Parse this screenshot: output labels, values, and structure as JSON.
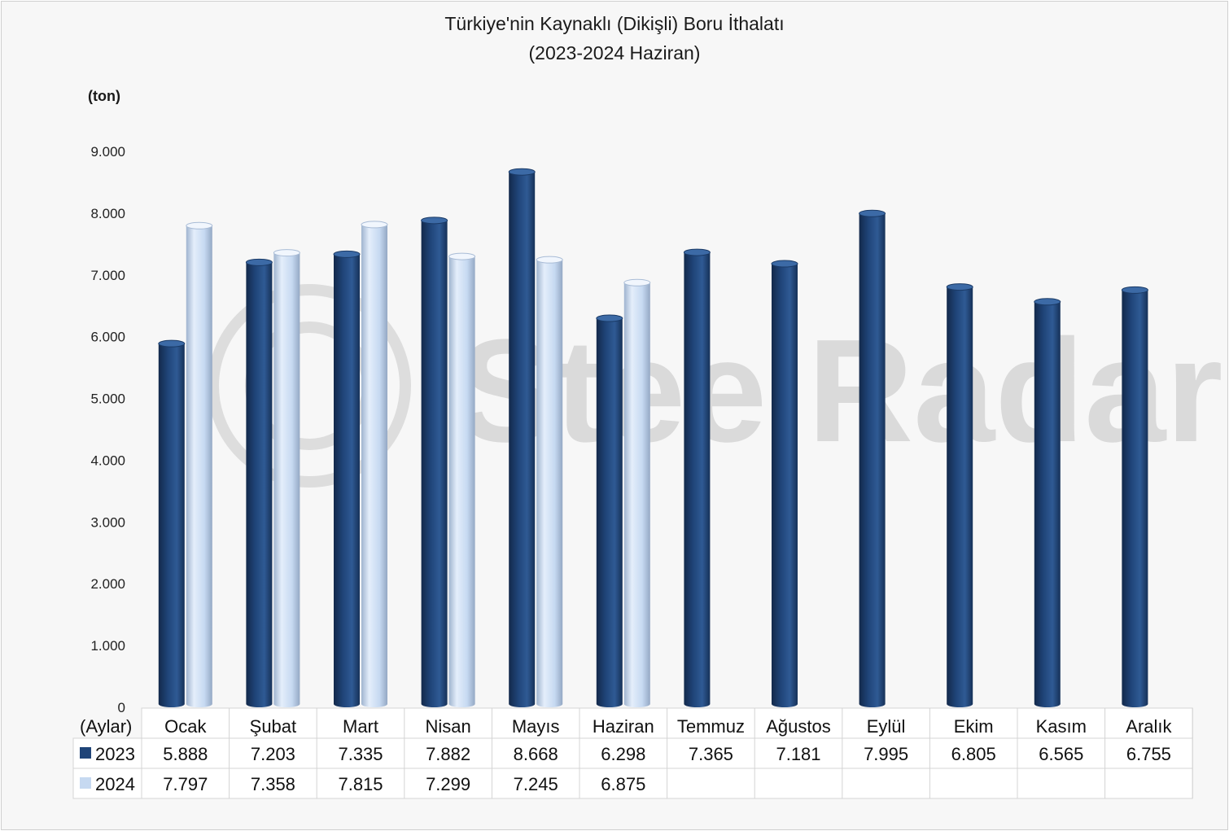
{
  "title": "Türkiye'nin Kaynaklı (Dikişli) Boru İthalatı",
  "subtitle": "(2023-2024 Haziran)",
  "watermark": "SteelRadar",
  "colors": {
    "series2023": "#1f4478",
    "series2024": "#c6d9f1",
    "background": "#f7f7f7",
    "grid": "#d9d9d9"
  },
  "chart_data": {
    "type": "bar",
    "title": "Türkiye'nin Kaynaklı (Dikişli) Boru İthalatı",
    "subtitle": "(2023-2024 Haziran)",
    "ylabel": "(ton)",
    "xlabel": "(Aylar)",
    "ylim": [
      0,
      9000
    ],
    "yticks": [
      0,
      1000,
      2000,
      3000,
      4000,
      5000,
      6000,
      7000,
      8000,
      9000
    ],
    "ytick_labels": [
      "0",
      "1.000",
      "2.000",
      "3.000",
      "4.000",
      "5.000",
      "6.000",
      "7.000",
      "8.000",
      "9.000"
    ],
    "categories": [
      "Ocak",
      "Şubat",
      "Mart",
      "Nisan",
      "Mayıs",
      "Haziran",
      "Temmuz",
      "Ağustos",
      "Eylül",
      "Ekim",
      "Kasım",
      "Aralık"
    ],
    "series": [
      {
        "name": "2023",
        "values": [
          5888,
          7203,
          7335,
          7882,
          8668,
          6298,
          7365,
          7181,
          7995,
          6805,
          6565,
          6755
        ],
        "labels": [
          "5.888",
          "7.203",
          "7.335",
          "7.882",
          "8.668",
          "6.298",
          "7.365",
          "7.181",
          "7.995",
          "6.805",
          "6.565",
          "6.755"
        ]
      },
      {
        "name": "2024",
        "values": [
          7797,
          7358,
          7815,
          7299,
          7245,
          6875,
          null,
          null,
          null,
          null,
          null,
          null
        ],
        "labels": [
          "7.797",
          "7.358",
          "7.815",
          "7.299",
          "7.245",
          "6.875",
          "",
          "",
          "",
          "",
          "",
          ""
        ]
      }
    ],
    "grid": false,
    "legend": "data-table"
  }
}
